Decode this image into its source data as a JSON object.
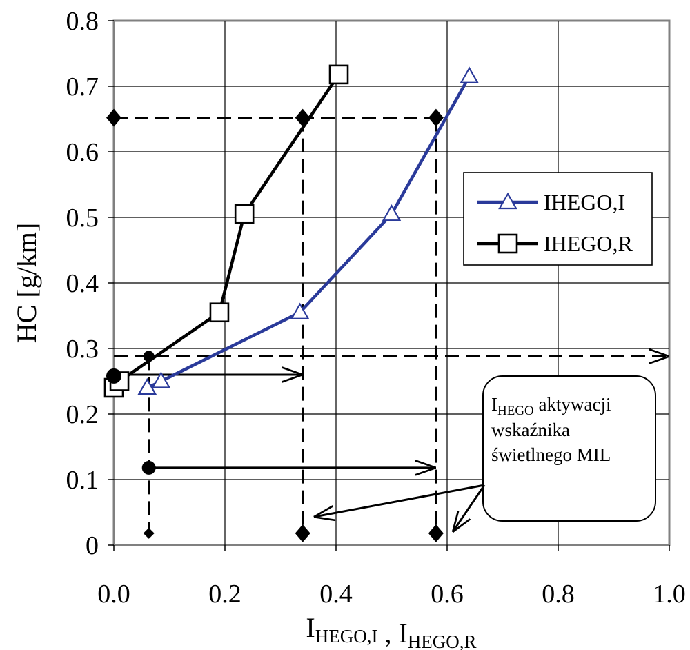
{
  "chart_data": {
    "type": "line",
    "title": "",
    "xlabel": {
      "parts": [
        {
          "text": "I",
          "sub": "HEGO,I"
        },
        {
          "text": " , I",
          "sub": "HEGO,R"
        }
      ]
    },
    "ylabel": "HC [g/km]",
    "xlim": [
      0.0,
      1.0
    ],
    "ylim": [
      0,
      0.8
    ],
    "x_ticks": [
      "0.0",
      "0.2",
      "0.4",
      "0.6",
      "0.8",
      "1.0"
    ],
    "y_ticks": [
      "0",
      "0.1",
      "0.2",
      "0.3",
      "0.4",
      "0.5",
      "0.6",
      "0.7",
      "0.8"
    ],
    "grid": true,
    "legend_position": "right",
    "series": [
      {
        "name": "IHEGO,I",
        "color": "#2a3a9a",
        "marker": "triangle",
        "points": [
          [
            0.06,
            0.24
          ],
          [
            0.085,
            0.25
          ],
          [
            0.335,
            0.355
          ],
          [
            0.5,
            0.505
          ],
          [
            0.64,
            0.715
          ]
        ]
      },
      {
        "name": "IHEGO,R",
        "color": "#000000",
        "marker": "square",
        "points": [
          [
            0.0,
            0.24
          ],
          [
            0.01,
            0.25
          ],
          [
            0.19,
            0.355
          ],
          [
            0.235,
            0.505
          ],
          [
            0.405,
            0.718
          ]
        ]
      }
    ],
    "reference_lines": [
      {
        "style": "dashed",
        "points": [
          [
            0.0,
            0.652
          ],
          [
            0.58,
            0.652
          ]
        ]
      },
      {
        "style": "dashed-arrow",
        "points": [
          [
            0.0,
            0.288
          ],
          [
            1.0,
            0.288
          ]
        ]
      },
      {
        "style": "dashed",
        "points": [
          [
            0.063,
            0.288
          ],
          [
            0.063,
            0.018
          ]
        ]
      },
      {
        "style": "dashed",
        "points": [
          [
            0.34,
            0.652
          ],
          [
            0.34,
            0.018
          ]
        ]
      },
      {
        "style": "dashed",
        "points": [
          [
            0.58,
            0.652
          ],
          [
            0.58,
            0.018
          ]
        ]
      },
      {
        "style": "solid-arrow",
        "points": [
          [
            0.0,
            0.26
          ],
          [
            0.34,
            0.26
          ]
        ]
      },
      {
        "style": "solid-arrow",
        "points": [
          [
            0.063,
            0.118
          ],
          [
            0.58,
            0.118
          ]
        ]
      }
    ],
    "diamond_markers": [
      [
        0.0,
        0.652
      ],
      [
        0.34,
        0.652
      ],
      [
        0.58,
        0.652
      ],
      [
        0.063,
        0.018
      ],
      [
        0.34,
        0.018
      ],
      [
        0.58,
        0.018
      ]
    ],
    "circle_markers": [
      [
        0.0,
        0.258
      ],
      [
        0.063,
        0.118
      ],
      [
        0.063,
        0.288
      ]
    ],
    "annotation": {
      "lines": [
        {
          "text": "I",
          "sub": "HEGO",
          "tail": " aktywacji"
        },
        {
          "text": "wskaźnika"
        },
        {
          "text": "świetlnego MIL"
        }
      ]
    },
    "annotation_arrow_targets": [
      [
        0.36,
        0.043
      ],
      [
        0.61,
        0.02
      ]
    ]
  }
}
